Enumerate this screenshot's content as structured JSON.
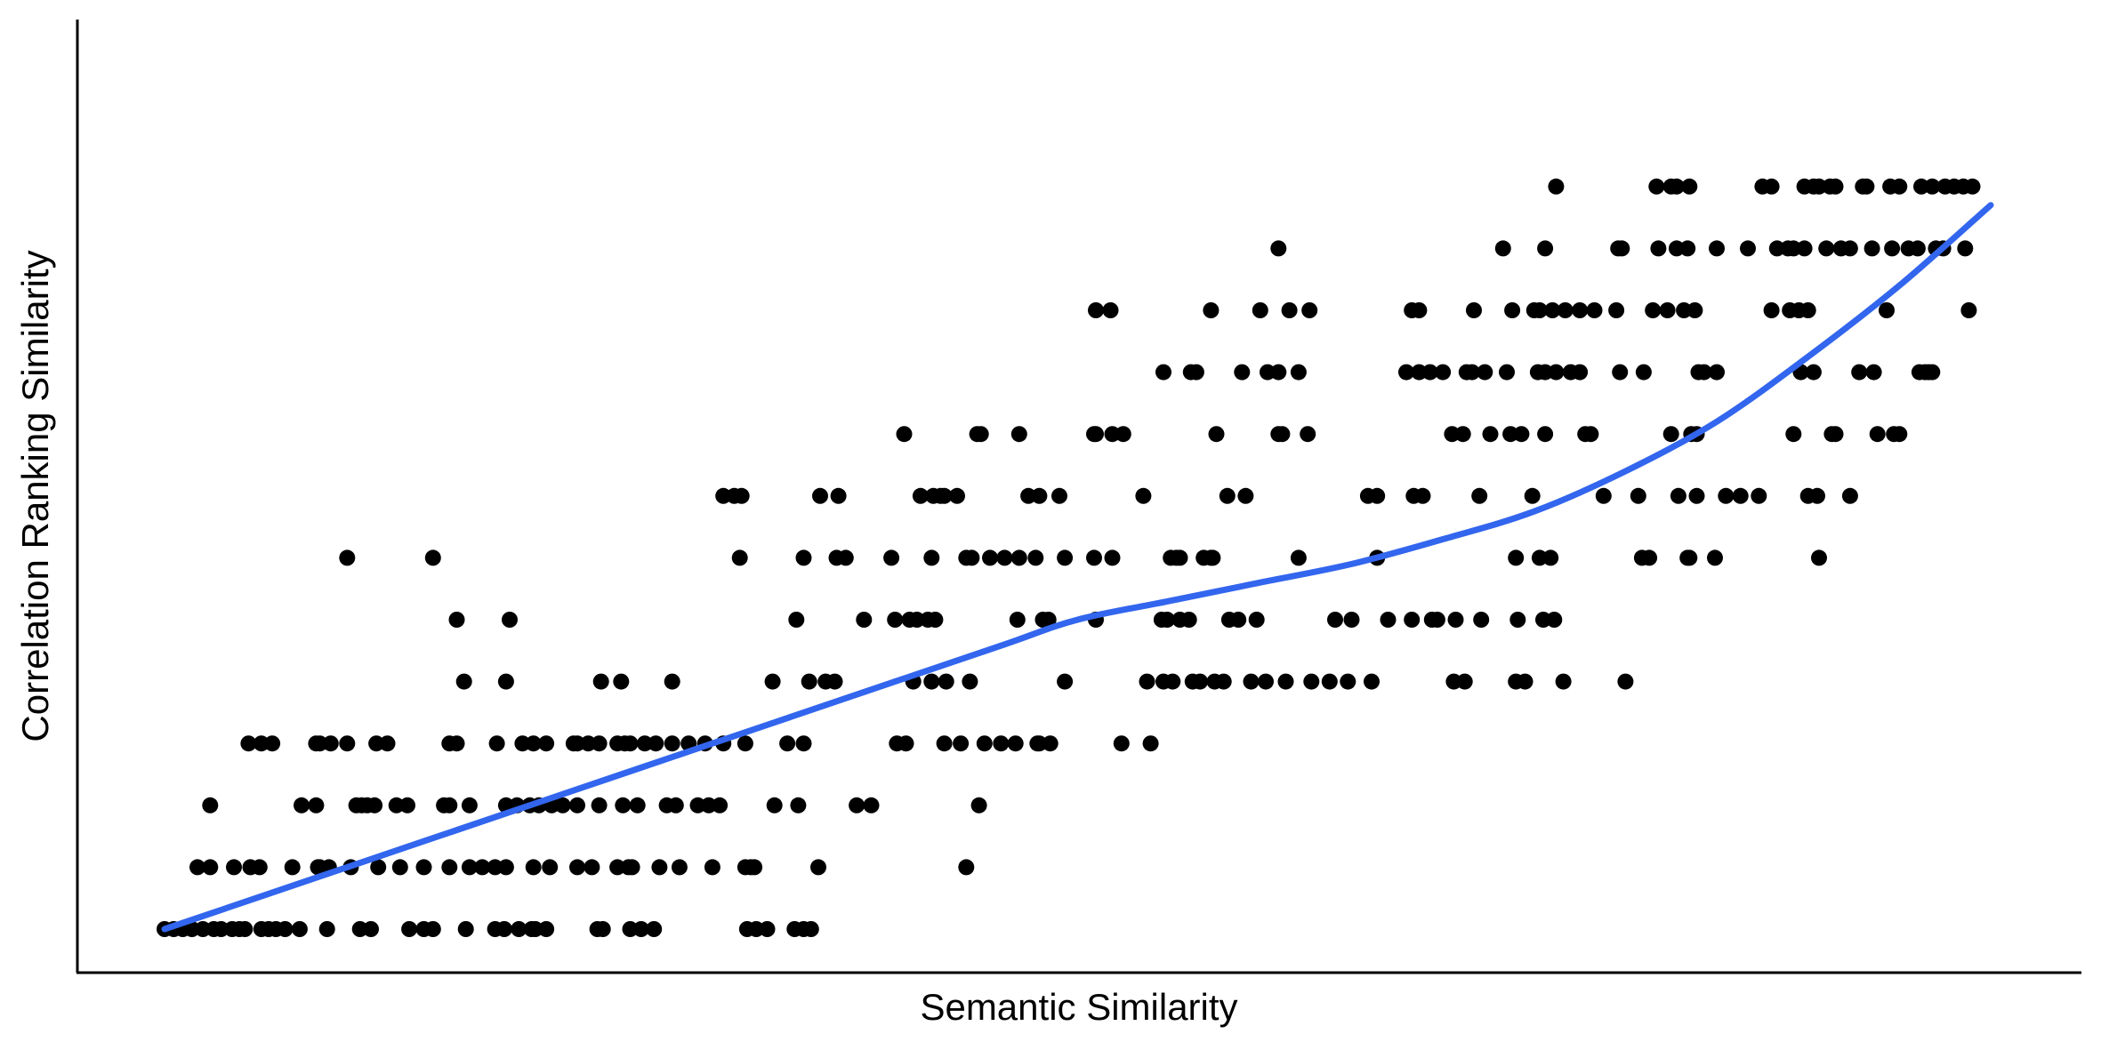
{
  "chart_data": {
    "type": "scatter",
    "xlabel": "Semantic Similarity",
    "ylabel": "Correlation Ranking Similarity",
    "xlim": [
      0,
      1
    ],
    "ylim": [
      0,
      14
    ],
    "grid": false,
    "legend": "none",
    "colors": {
      "points": "#000000",
      "trend": "#3366ee"
    },
    "points": [
      {
        "y": 13,
        "x": [
          0.762,
          0.817,
          0.825,
          0.828,
          0.835,
          0.875,
          0.88,
          0.898,
          0.903,
          0.906,
          0.912,
          0.915,
          0.93,
          0.932,
          0.945,
          0.95,
          0.962,
          0.968,
          0.975,
          0.98,
          0.985,
          0.99
        ]
      },
      {
        "y": 12,
        "x": [
          0.61,
          0.733,
          0.756,
          0.796,
          0.798,
          0.818,
          0.828,
          0.834,
          0.85,
          0.867,
          0.883,
          0.889,
          0.892,
          0.898,
          0.91,
          0.918,
          0.923,
          0.935,
          0.946,
          0.955,
          0.96,
          0.97,
          0.974,
          0.986
        ]
      },
      {
        "y": 11,
        "x": [
          0.51,
          0.518,
          0.573,
          0.6,
          0.616,
          0.627,
          0.683,
          0.687,
          0.717,
          0.738,
          0.75,
          0.753,
          0.76,
          0.767,
          0.775,
          0.783,
          0.795,
          0.815,
          0.823,
          0.832,
          0.838,
          0.88,
          0.89,
          0.895,
          0.9,
          0.943,
          0.988
        ]
      },
      {
        "y": 10,
        "x": [
          0.547,
          0.562,
          0.565,
          0.59,
          0.604,
          0.61,
          0.621,
          0.68,
          0.687,
          0.693,
          0.7,
          0.713,
          0.716,
          0.723,
          0.735,
          0.752,
          0.756,
          0.762,
          0.77,
          0.775,
          0.797,
          0.81,
          0.84,
          0.843,
          0.85,
          0.896,
          0.903,
          0.928,
          0.936,
          0.961,
          0.964,
          0.966,
          0.968
        ]
      },
      {
        "y": 9,
        "x": [
          0.405,
          0.445,
          0.447,
          0.468,
          0.509,
          0.51,
          0.519,
          0.525,
          0.576,
          0.61,
          0.612,
          0.626,
          0.705,
          0.711,
          0.726,
          0.737,
          0.743,
          0.756,
          0.778,
          0.781,
          0.825,
          0.836,
          0.839,
          0.892,
          0.913,
          0.915,
          0.938,
          0.947,
          0.95
        ]
      },
      {
        "y": 8,
        "x": [
          0.306,
          0.312,
          0.316,
          0.359,
          0.369,
          0.414,
          0.421,
          0.425,
          0.427,
          0.434,
          0.473,
          0.479,
          0.49,
          0.536,
          0.582,
          0.592,
          0.659,
          0.664,
          0.684,
          0.689,
          0.72,
          0.749,
          0.788,
          0.807,
          0.829,
          0.839,
          0.855,
          0.863,
          0.873,
          0.9,
          0.905,
          0.923
        ]
      },
      {
        "y": 7,
        "x": [
          0.1,
          0.147,
          0.315,
          0.35,
          0.368,
          0.373,
          0.398,
          0.42,
          0.439,
          0.442,
          0.452,
          0.46,
          0.468,
          0.477,
          0.493,
          0.509,
          0.519,
          0.551,
          0.554,
          0.556,
          0.569,
          0.573,
          0.574,
          0.621,
          0.664,
          0.74,
          0.753,
          0.759,
          0.809,
          0.813,
          0.834,
          0.835,
          0.849,
          0.906
        ]
      },
      {
        "y": 6,
        "x": [
          0.16,
          0.189,
          0.346,
          0.383,
          0.4,
          0.408,
          0.412,
          0.418,
          0.422,
          0.467,
          0.481,
          0.484,
          0.51,
          0.546,
          0.549,
          0.556,
          0.561,
          0.583,
          0.588,
          0.598,
          0.641,
          0.65,
          0.67,
          0.683,
          0.694,
          0.697,
          0.707,
          0.721,
          0.741,
          0.755,
          0.761
        ]
      },
      {
        "y": 5,
        "x": [
          0.164,
          0.187,
          0.239,
          0.25,
          0.278,
          0.333,
          0.353,
          0.362,
          0.367,
          0.41,
          0.42,
          0.428,
          0.441,
          0.493,
          0.538,
          0.547,
          0.552,
          0.563,
          0.567,
          0.575,
          0.58,
          0.595,
          0.603,
          0.614,
          0.628,
          0.638,
          0.648,
          0.661,
          0.706,
          0.712,
          0.74,
          0.745,
          0.766,
          0.8
        ]
      },
      {
        "y": 4,
        "x": [
          0.046,
          0.053,
          0.059,
          0.083,
          0.085,
          0.091,
          0.1,
          0.116,
          0.122,
          0.156,
          0.16,
          0.182,
          0.196,
          0.202,
          0.209,
          0.224,
          0.226,
          0.232,
          0.238,
          0.248,
          0.252,
          0.255,
          0.263,
          0.269,
          0.278,
          0.287,
          0.296,
          0.306,
          0.318,
          0.341,
          0.35,
          0.401,
          0.406,
          0.427,
          0.436,
          0.449,
          0.458,
          0.466,
          0.478,
          0.479,
          0.485,
          0.524,
          0.54
        ]
      },
      {
        "y": 3,
        "x": [
          0.025,
          0.075,
          0.083,
          0.105,
          0.108,
          0.111,
          0.115,
          0.127,
          0.133,
          0.153,
          0.156,
          0.167,
          0.187,
          0.193,
          0.2,
          0.205,
          0.212,
          0.218,
          0.226,
          0.238,
          0.251,
          0.259,
          0.275,
          0.28,
          0.292,
          0.298,
          0.304,
          0.334,
          0.347,
          0.379,
          0.387,
          0.446
        ]
      },
      {
        "y": 2,
        "x": [
          0.018,
          0.025,
          0.038,
          0.047,
          0.052,
          0.07,
          0.084,
          0.085,
          0.09,
          0.102,
          0.117,
          0.129,
          0.142,
          0.156,
          0.167,
          0.174,
          0.181,
          0.187,
          0.202,
          0.211,
          0.226,
          0.234,
          0.248,
          0.254,
          0.256,
          0.271,
          0.282,
          0.3,
          0.318,
          0.321,
          0.323,
          0.358,
          0.439
        ]
      },
      {
        "y": 1,
        "x": [
          0.0,
          0.005,
          0.01,
          0.015,
          0.021,
          0.027,
          0.031,
          0.037,
          0.041,
          0.044,
          0.053,
          0.057,
          0.061,
          0.066,
          0.074,
          0.089,
          0.107,
          0.113,
          0.134,
          0.142,
          0.147,
          0.165,
          0.181,
          0.186,
          0.194,
          0.201,
          0.203,
          0.209,
          0.237,
          0.24,
          0.255,
          0.261,
          0.268,
          0.319,
          0.324,
          0.33,
          0.345,
          0.35,
          0.354
        ]
      }
    ],
    "trend_line": [
      [
        0.0,
        1.0
      ],
      [
        0.1,
        2.0
      ],
      [
        0.2,
        3.0
      ],
      [
        0.3,
        4.0
      ],
      [
        0.4,
        5.0
      ],
      [
        0.46,
        5.6
      ],
      [
        0.5,
        6.0
      ],
      [
        0.55,
        6.3
      ],
      [
        0.6,
        6.6
      ],
      [
        0.65,
        6.9
      ],
      [
        0.7,
        7.3
      ],
      [
        0.75,
        7.75
      ],
      [
        0.8,
        8.4
      ],
      [
        0.85,
        9.2
      ],
      [
        0.9,
        10.25
      ],
      [
        0.95,
        11.4
      ],
      [
        1.0,
        12.7
      ]
    ]
  }
}
